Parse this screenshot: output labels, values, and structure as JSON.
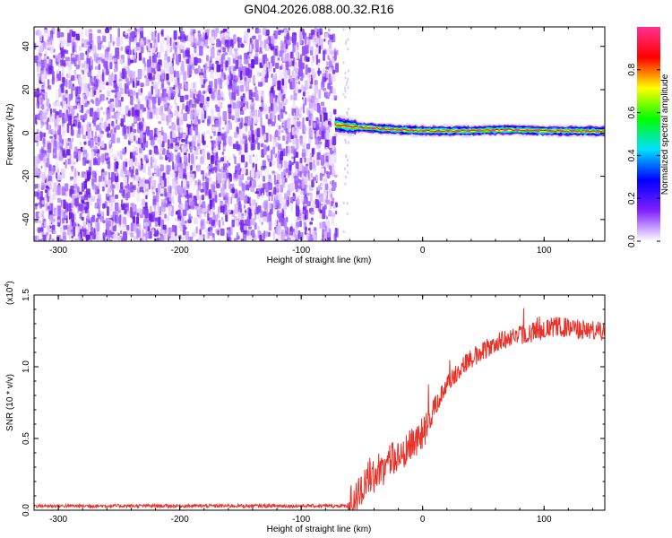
{
  "figure": {
    "title": "GN04.2026.088.00.32.R16"
  },
  "chart_data": [
    {
      "type": "heatmap",
      "title": "GN04.2026.088.00.32.R16",
      "xlabel": "Height of straight line (km)",
      "ylabel": "Frequency (Hz)",
      "xlim": [
        -320,
        150
      ],
      "ylim": [
        -50,
        49
      ],
      "x_ticks": [
        -300,
        -200,
        -100,
        0,
        100
      ],
      "x_tick_labels": [
        "-300",
        "-200",
        "-100",
        "0",
        "100"
      ],
      "y_ticks": [
        -40,
        -20,
        0,
        20,
        40
      ],
      "y_tick_labels": [
        "-40",
        "-20",
        "0",
        "20",
        "40"
      ],
      "noise_region_x": [
        -320,
        -72
      ],
      "signal_start_x": -72,
      "signal_end_x": 150,
      "signal_frequency_hz": [
        {
          "x": -72,
          "f": 3.8
        },
        {
          "x": -60,
          "f": 3.0
        },
        {
          "x": -40,
          "f": 2.2
        },
        {
          "x": -20,
          "f": 1.5
        },
        {
          "x": 0,
          "f": 1.0
        },
        {
          "x": 40,
          "f": 1.0
        },
        {
          "x": 70,
          "f": 1.5
        },
        {
          "x": 100,
          "f": 1.0
        },
        {
          "x": 150,
          "f": 0.8
        }
      ],
      "colorbar": {
        "label": "Normalized spectral amplitude",
        "range": [
          0,
          1
        ],
        "ticks": [
          0.0,
          0.2,
          0.4,
          0.6,
          0.8
        ],
        "tick_labels": [
          "0.0",
          "0.2",
          "0.4",
          "0.6",
          "0.8"
        ],
        "colors": [
          "#ffffff",
          "#8020ff",
          "#0000ff",
          "#00e0ff",
          "#00ff00",
          "#ffff00",
          "#ff0000",
          "#ff3090"
        ]
      }
    },
    {
      "type": "line",
      "xlabel": "Height of straight line (km)",
      "ylabel": "SNR (10 * v/v)",
      "multiplier_label": "(x10",
      "multiplier_exp": "4",
      "multiplier_close": ")",
      "xlim": [
        -320,
        150
      ],
      "ylim": [
        0,
        1.5
      ],
      "x_ticks": [
        -300,
        -200,
        -100,
        0,
        100
      ],
      "x_tick_labels": [
        "-300",
        "-200",
        "-100",
        "0",
        "100"
      ],
      "y_ticks": [
        0.0,
        0.5,
        1.0,
        1.5
      ],
      "y_tick_labels": [
        "0.0",
        "0.5",
        "1.0",
        "1.5"
      ],
      "series": [
        {
          "name": "SNR",
          "color": "#e8322a",
          "x": [
            -320,
            -300,
            -250,
            -200,
            -150,
            -100,
            -70,
            -62,
            -55,
            -50,
            -45,
            -40,
            -35,
            -30,
            -20,
            -10,
            0,
            10,
            20,
            30,
            40,
            50,
            60,
            70,
            80,
            90,
            100,
            110,
            120,
            130,
            140,
            150
          ],
          "values": [
            0.03,
            0.03,
            0.03,
            0.03,
            0.03,
            0.03,
            0.03,
            0.03,
            0.08,
            0.15,
            0.22,
            0.24,
            0.28,
            0.32,
            0.38,
            0.45,
            0.55,
            0.72,
            0.88,
            0.98,
            1.06,
            1.11,
            1.16,
            1.2,
            1.22,
            1.24,
            1.26,
            1.28,
            1.27,
            1.26,
            1.25,
            1.24
          ]
        }
      ]
    }
  ]
}
